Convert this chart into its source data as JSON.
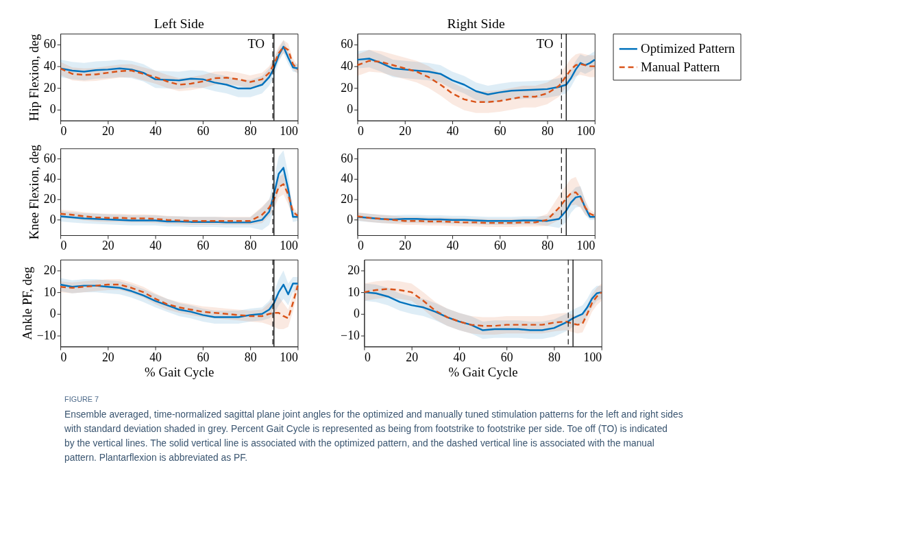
{
  "chart_data": [
    {
      "type": "line",
      "title": "Left Side",
      "ylabel": "Hip Flexion, deg",
      "x": [
        0,
        5,
        10,
        15,
        20,
        25,
        30,
        35,
        40,
        45,
        50,
        55,
        60,
        65,
        70,
        75,
        80,
        85,
        88,
        90,
        92,
        94,
        96,
        98,
        100
      ],
      "xlim": [
        0,
        100
      ],
      "xticks": [
        0,
        20,
        40,
        60,
        80,
        100
      ],
      "ylim": [
        -10,
        70
      ],
      "yticks": [
        0,
        20,
        40,
        60
      ],
      "grid": false,
      "legend": false,
      "series": [
        {
          "color": "#0072bd",
          "line_style": "solid",
          "values": [
            38,
            36,
            35,
            36.5,
            37,
            38,
            37,
            34,
            28,
            27.5,
            27,
            28.5,
            28,
            25,
            23,
            19.5,
            19.5,
            23,
            30,
            38,
            50,
            58,
            48,
            39,
            38
          ],
          "lower": [
            30,
            28,
            27,
            28.5,
            29,
            30,
            29,
            26,
            20,
            19.5,
            19,
            20.5,
            20,
            17,
            15,
            11.5,
            11.5,
            15,
            22,
            30,
            44,
            52,
            42,
            35,
            34
          ],
          "upper": [
            46,
            44,
            43,
            44.5,
            45,
            46,
            45,
            42,
            36,
            35.5,
            35,
            36.5,
            36,
            33,
            31,
            27.5,
            27.5,
            31,
            38,
            46,
            56,
            64,
            54,
            43,
            42
          ]
        },
        {
          "color": "#d95319",
          "line_style": "dashed",
          "values": [
            38,
            33,
            32,
            32.5,
            34,
            35.5,
            36,
            33,
            30,
            26,
            23,
            24,
            26,
            29,
            29.5,
            28,
            25.5,
            28,
            34,
            42,
            52,
            58,
            55,
            42,
            37
          ],
          "lower": [
            32,
            27,
            26,
            26.5,
            28,
            29.5,
            30,
            27,
            24,
            20,
            17,
            18,
            20,
            23,
            23.5,
            22,
            19.5,
            22,
            28,
            36,
            46,
            52,
            49,
            37,
            33
          ],
          "upper": [
            44,
            39,
            38,
            38.5,
            40,
            41.5,
            42,
            39,
            36,
            32,
            29,
            30,
            32,
            35,
            35.5,
            34,
            31.5,
            34,
            40,
            48,
            58,
            64,
            61,
            47,
            41
          ]
        }
      ],
      "ref_lines": [
        {
          "axis": "x",
          "value": 89.5,
          "line_style": "dashed",
          "color": "#262626"
        },
        {
          "axis": "x",
          "value": 90,
          "line_style": "solid",
          "color": "#000000"
        }
      ],
      "annotations": [
        "TO"
      ]
    },
    {
      "type": "line",
      "title": "Right Side",
      "x": [
        0,
        5,
        10,
        15,
        20,
        25,
        30,
        35,
        40,
        45,
        50,
        55,
        60,
        65,
        70,
        75,
        80,
        85,
        88,
        90,
        92,
        94,
        96,
        98,
        100
      ],
      "xlim": [
        0,
        100
      ],
      "xticks": [
        0,
        20,
        40,
        60,
        80,
        100
      ],
      "ylim": [
        -10,
        70
      ],
      "yticks": [
        0,
        20,
        40,
        60
      ],
      "grid": false,
      "legend": "right",
      "series": [
        {
          "name": "Optimized Pattern",
          "color": "#0072bd",
          "line_style": "solid",
          "values": [
            46,
            47,
            43,
            38,
            37,
            36,
            35,
            33,
            27,
            23,
            17,
            14,
            16,
            17.5,
            18,
            18.5,
            19,
            21,
            23,
            29,
            37,
            43,
            41,
            43,
            46
          ],
          "lower": [
            38,
            39,
            35,
            30,
            29,
            28,
            27,
            25,
            19,
            15,
            9,
            6,
            8,
            9.5,
            10,
            10.5,
            11,
            13,
            15,
            21,
            29,
            35,
            33,
            35,
            38
          ],
          "upper": [
            54,
            55,
            51,
            46,
            45,
            44,
            43,
            41,
            35,
            31,
            25,
            22,
            24,
            25.5,
            26,
            26.5,
            27,
            29,
            31,
            37,
            45,
            51,
            49,
            51,
            54
          ]
        },
        {
          "name": "Manual Pattern",
          "color": "#d95319",
          "line_style": "dashed",
          "values": [
            41,
            45,
            44,
            41,
            38,
            35,
            30,
            23,
            15,
            9.5,
            7,
            7,
            8,
            10,
            12,
            12,
            15,
            22,
            31,
            37,
            41,
            42,
            41,
            40,
            40
          ],
          "lower": [
            31,
            35,
            34,
            31,
            28,
            25,
            20,
            13,
            5,
            -0.5,
            -3,
            -3,
            -2,
            0,
            2,
            2,
            5,
            12,
            21,
            27,
            31,
            32,
            31,
            30,
            30
          ],
          "upper": [
            51,
            55,
            54,
            51,
            48,
            45,
            40,
            33,
            25,
            19.5,
            17,
            17,
            18,
            20,
            22,
            22,
            25,
            32,
            41,
            47,
            51,
            52,
            51,
            50,
            50
          ]
        }
      ],
      "ref_lines": [
        {
          "axis": "x",
          "value": 86,
          "line_style": "dashed",
          "color": "#262626"
        },
        {
          "axis": "x",
          "value": 88,
          "line_style": "solid",
          "color": "#000000"
        }
      ],
      "annotations": [
        "TO"
      ]
    },
    {
      "type": "line",
      "ylabel": "Knee Flexion, deg",
      "x": [
        0,
        5,
        10,
        15,
        20,
        25,
        30,
        35,
        40,
        45,
        50,
        55,
        60,
        65,
        70,
        75,
        80,
        85,
        88,
        90,
        92,
        94,
        96,
        98,
        100
      ],
      "xlim": [
        0,
        100
      ],
      "xticks": [
        0,
        20,
        40,
        60,
        80,
        100
      ],
      "ylim": [
        -15,
        70
      ],
      "yticks": [
        0,
        20,
        40,
        60
      ],
      "grid": false,
      "legend": false,
      "series": [
        {
          "color": "#0072bd",
          "line_style": "solid",
          "values": [
            3.5,
            2.5,
            1.5,
            1,
            0.5,
            0,
            -0.5,
            -0.5,
            -0.5,
            -1.5,
            -1.5,
            -2,
            -2,
            -2,
            -2.5,
            -2.5,
            -2.5,
            0,
            8,
            25,
            45,
            51,
            30,
            3,
            3
          ],
          "lower": [
            -1.5,
            -2.5,
            -3.5,
            -4,
            -4.5,
            -5,
            -5.5,
            -5.5,
            -5.5,
            -6.5,
            -6.5,
            -7,
            -7,
            -7,
            -7.5,
            -7.5,
            -7.5,
            -10,
            -5,
            10,
            30,
            35,
            18,
            -2,
            -1
          ],
          "upper": [
            8.5,
            7.5,
            6.5,
            6,
            5.5,
            5,
            4.5,
            4.5,
            4.5,
            3.5,
            3.5,
            3,
            3,
            3,
            2.5,
            2.5,
            2.5,
            12,
            20,
            40,
            62,
            68,
            45,
            8,
            7
          ]
        },
        {
          "color": "#d95319",
          "line_style": "dashed",
          "values": [
            6,
            5,
            3.5,
            2.5,
            2,
            2,
            1.5,
            1.5,
            1,
            0,
            -0.5,
            -1,
            -1,
            -1,
            -1,
            -1,
            -1,
            5,
            12,
            20,
            32,
            35,
            25,
            8,
            4
          ],
          "lower": [
            2,
            1,
            -0.5,
            -1.5,
            -2,
            -2,
            -2.5,
            -2.5,
            -3,
            -4,
            -4.5,
            -5,
            -5,
            -5,
            -5,
            -5,
            -5,
            -3,
            4,
            10,
            22,
            25,
            15,
            3,
            1
          ],
          "upper": [
            10,
            9,
            7.5,
            6.5,
            6,
            6,
            5.5,
            5.5,
            5,
            4,
            3.5,
            3,
            3,
            3,
            3,
            3,
            3,
            13,
            20,
            30,
            42,
            45,
            35,
            13,
            7
          ]
        }
      ],
      "ref_lines": [
        {
          "axis": "x",
          "value": 89.5,
          "line_style": "dashed",
          "color": "#262626"
        },
        {
          "axis": "x",
          "value": 90,
          "line_style": "solid",
          "color": "#000000"
        }
      ]
    },
    {
      "type": "line",
      "x": [
        0,
        5,
        10,
        15,
        20,
        25,
        30,
        35,
        40,
        45,
        50,
        55,
        60,
        65,
        70,
        75,
        80,
        85,
        88,
        90,
        92,
        94,
        96,
        98,
        100
      ],
      "xlim": [
        0,
        100
      ],
      "xticks": [
        0,
        20,
        40,
        60,
        80,
        100
      ],
      "ylim": [
        -15,
        70
      ],
      "yticks": [
        0,
        20,
        40,
        60
      ],
      "grid": false,
      "legend": false,
      "series": [
        {
          "color": "#0072bd",
          "line_style": "solid",
          "values": [
            3,
            2,
            1,
            0.5,
            1,
            1,
            0.5,
            0.5,
            0,
            0,
            -0.5,
            -1,
            -1,
            -1,
            -0.5,
            -0.5,
            -1,
            1,
            9,
            17,
            22,
            23,
            12,
            3,
            3
          ],
          "lower": [
            -1,
            -2,
            -3,
            -3.5,
            -3,
            -3,
            -3.5,
            -3.5,
            -4,
            -4,
            -4.5,
            -5,
            -5,
            -5,
            -4.5,
            -4.5,
            -6,
            -8,
            -2,
            7,
            12,
            13,
            5,
            0,
            0
          ],
          "upper": [
            7,
            6,
            5,
            4.5,
            5,
            5,
            4.5,
            4.5,
            4,
            4,
            3.5,
            3,
            3,
            3,
            3.5,
            3.5,
            4,
            10,
            20,
            27,
            32,
            33,
            19,
            6,
            6
          ]
        },
        {
          "color": "#d95319",
          "line_style": "dashed",
          "values": [
            3.5,
            2,
            1,
            0,
            -1,
            -1,
            -1.5,
            -1.5,
            -2,
            -2.5,
            -2.5,
            -3,
            -3,
            -3,
            -2.5,
            -2.5,
            0,
            12,
            21,
            26,
            27,
            22,
            12,
            6,
            4
          ],
          "lower": [
            -0.5,
            -2,
            -3,
            -4,
            -5,
            -5,
            -5.5,
            -5.5,
            -6,
            -6.5,
            -6.5,
            -7,
            -7,
            -7,
            -6.5,
            -6.5,
            -6,
            0,
            8,
            14,
            15,
            12,
            5,
            2,
            1
          ],
          "upper": [
            7.5,
            6,
            5,
            4,
            3,
            3,
            2.5,
            2.5,
            2,
            1.5,
            1.5,
            1,
            1,
            1,
            1.5,
            1.5,
            6,
            24,
            34,
            40,
            42,
            32,
            19,
            10,
            7
          ]
        }
      ],
      "ref_lines": [
        {
          "axis": "x",
          "value": 86,
          "line_style": "dashed",
          "color": "#262626"
        },
        {
          "axis": "x",
          "value": 88,
          "line_style": "solid",
          "color": "#000000"
        }
      ]
    },
    {
      "type": "line",
      "ylabel": "Ankle PF, deg",
      "xlabel": "% Gait Cycle",
      "x": [
        0,
        5,
        10,
        15,
        20,
        25,
        30,
        35,
        40,
        45,
        50,
        55,
        60,
        65,
        70,
        75,
        80,
        85,
        88,
        90,
        92,
        94,
        96,
        98,
        100
      ],
      "xlim": [
        0,
        100
      ],
      "xticks": [
        0,
        20,
        40,
        60,
        80,
        100
      ],
      "ylim": [
        -15,
        25
      ],
      "yticks": [
        -10,
        0,
        10,
        20
      ],
      "grid": false,
      "legend": false,
      "series": [
        {
          "color": "#0072bd",
          "line_style": "solid",
          "values": [
            13.5,
            12.5,
            13,
            13,
            12.5,
            12,
            10.5,
            8.5,
            6,
            4,
            2,
            1,
            -0.5,
            -1.5,
            -1.5,
            -1.5,
            -0.5,
            0,
            2,
            5,
            10,
            13.5,
            9,
            14,
            14
          ],
          "lower": [
            10.5,
            9.5,
            10,
            10,
            9.5,
            9,
            7.5,
            5.5,
            3,
            1,
            -1,
            -2,
            -3.5,
            -4.5,
            -4.5,
            -4.5,
            -3.5,
            -3,
            -2,
            0,
            4,
            7,
            4,
            10,
            11
          ],
          "upper": [
            16.5,
            15.5,
            16,
            16,
            15.5,
            15,
            13.5,
            11.5,
            9,
            7,
            5,
            4,
            2.5,
            1.5,
            1.5,
            1.5,
            2.5,
            3,
            6,
            10,
            16,
            20,
            14,
            17,
            17
          ]
        },
        {
          "color": "#d95319",
          "line_style": "dashed",
          "values": [
            12.5,
            12,
            12.5,
            13,
            13.5,
            13.5,
            12,
            10,
            7,
            4.5,
            3,
            2,
            1,
            0.5,
            0,
            -0.5,
            -1,
            -1,
            0,
            0.5,
            0.5,
            -1,
            -2,
            5,
            13
          ],
          "lower": [
            10,
            9.5,
            10,
            10.5,
            11,
            11,
            9.5,
            7.5,
            4.5,
            2,
            0.5,
            -0.5,
            -1.5,
            -2,
            -2.5,
            -3,
            -3.5,
            -4,
            -5,
            -6,
            -7,
            -7,
            -6,
            1,
            10
          ],
          "upper": [
            15,
            14.5,
            15,
            15.5,
            16,
            16,
            14.5,
            12.5,
            9.5,
            7,
            5.5,
            4.5,
            3.5,
            3,
            2.5,
            2,
            1.5,
            2,
            5,
            7,
            8,
            5,
            2,
            9,
            16
          ]
        }
      ],
      "ref_lines": [
        {
          "axis": "x",
          "value": 89.5,
          "line_style": "dashed",
          "color": "#262626"
        },
        {
          "axis": "x",
          "value": 90,
          "line_style": "solid",
          "color": "#000000"
        }
      ]
    },
    {
      "type": "line",
      "xlabel": "% Gait Cycle",
      "x": [
        0,
        5,
        10,
        15,
        20,
        25,
        30,
        35,
        40,
        45,
        50,
        55,
        60,
        65,
        70,
        75,
        80,
        85,
        88,
        90,
        92,
        94,
        96,
        98,
        100
      ],
      "xlim": [
        0,
        100
      ],
      "xticks": [
        0,
        20,
        40,
        60,
        80,
        100
      ],
      "ylim": [
        -15,
        25
      ],
      "yticks": [
        -10,
        0,
        10,
        20
      ],
      "grid": false,
      "legend": false,
      "series": [
        {
          "color": "#0072bd",
          "line_style": "solid",
          "values": [
            10,
            9.5,
            8,
            5.5,
            4,
            3,
            1,
            -1.5,
            -3.5,
            -5,
            -7.5,
            -7,
            -7,
            -7,
            -7.5,
            -7.5,
            -6.5,
            -4,
            -2,
            -1,
            0,
            3,
            7,
            9.5,
            10
          ],
          "lower": [
            6,
            5.5,
            4,
            1.5,
            0,
            -1,
            -3,
            -5.5,
            -7.5,
            -9,
            -11.5,
            -11,
            -11,
            -11,
            -11.5,
            -11.5,
            -10.5,
            -8,
            -6,
            -5,
            -4,
            -1,
            3,
            6,
            7
          ],
          "upper": [
            14,
            13.5,
            12,
            9.5,
            8,
            7,
            5,
            2.5,
            0.5,
            -1,
            -3.5,
            -3,
            -3,
            -3,
            -3.5,
            -3.5,
            -2.5,
            0,
            2,
            3,
            4,
            7,
            11,
            13,
            13
          ]
        },
        {
          "color": "#d95319",
          "line_style": "dashed",
          "values": [
            10,
            11,
            11.5,
            11,
            10,
            6,
            1.5,
            -1.5,
            -3.5,
            -5,
            -5.5,
            -5.5,
            -5,
            -5,
            -5,
            -5,
            -4,
            -3.5,
            -4.5,
            -5,
            -4.5,
            0,
            5,
            8,
            10
          ],
          "lower": [
            6,
            7,
            7.5,
            7,
            6,
            2,
            -2.5,
            -5.5,
            -7.5,
            -9,
            -9.5,
            -9.5,
            -9,
            -9,
            -9,
            -9,
            -8,
            -7.5,
            -8.5,
            -9,
            -8.5,
            -4,
            1,
            4,
            6
          ],
          "upper": [
            14,
            15,
            15.5,
            15,
            14,
            10,
            5.5,
            2.5,
            0.5,
            -1,
            -1.5,
            -1.5,
            -1,
            -1,
            -1,
            -1,
            0,
            0.5,
            -0.5,
            -1,
            -0.5,
            4,
            9,
            12,
            14
          ]
        }
      ],
      "ref_lines": [
        {
          "axis": "x",
          "value": 86,
          "line_style": "dashed",
          "color": "#262626"
        },
        {
          "axis": "x",
          "value": 88,
          "line_style": "solid",
          "color": "#000000"
        }
      ],
      "annotations": [
        "FIGURE 7",
        "Ensemble averaged, time-normalized sagittal plane joint angles for the optimized and manually tuned stimulation patterns for the left and right sides with standard deviation shaded in grey. Percent Gait Cycle is represented as being from footstrike to footstrike per side. Toe off (TO) is indicated by the vertical lines. The solid vertical line is associated with the optimized pattern, and the dashed vertical line is associated with the manual pattern. Plantarflexion is abbreviated as PF."
      ]
    }
  ]
}
